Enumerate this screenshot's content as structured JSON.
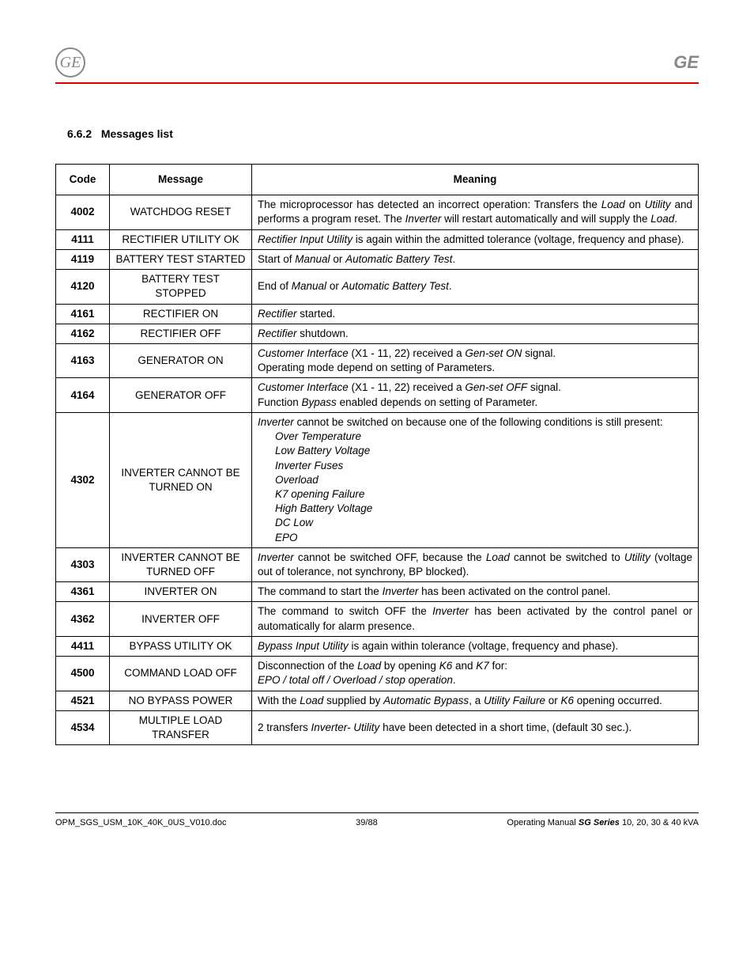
{
  "header": {
    "logo_text": "GE",
    "brand": "GE"
  },
  "section": {
    "number": "6.6.2",
    "title": "Messages list"
  },
  "table": {
    "headers": {
      "code": "Code",
      "message": "Message",
      "meaning": "Meaning"
    },
    "rows": [
      {
        "code": "4002",
        "msg": "WATCHDOG RESET",
        "mean_html": "The microprocessor has detected an incorrect operation: Transfers the <span class='ital'>Load</span> on <span class='ital'>Utility</span> and performs a program reset. The <span class='ital'>Inverter</span> will restart automatically and will supply the <span class='ital'>Load</span>."
      },
      {
        "code": "4111",
        "msg": "RECTIFIER UTILITY OK",
        "mean_html": "<span class='ital'>Rectifier Input Utility</span> is again within the admitted tolerance (voltage, frequency and phase)."
      },
      {
        "code": "4119",
        "msg": "BATTERY TEST STARTED",
        "mean_html": "Start of <span class='ital'>Manual</span> or <span class='ital'>Automatic Battery Test</span>."
      },
      {
        "code": "4120",
        "msg": "BATTERY TEST STOPPED",
        "mean_html": "End of <span class='ital'>Manual</span> or <span class='ital'>Automatic Battery Test</span>."
      },
      {
        "code": "4161",
        "msg": "RECTIFIER ON",
        "mean_html": "<span class='ital'>Rectifier</span> started."
      },
      {
        "code": "4162",
        "msg": "RECTIFIER OFF",
        "mean_html": "<span class='ital'>Rectifier</span> shutdown."
      },
      {
        "code": "4163",
        "msg": "GENERATOR ON",
        "mean_html": "<span class='ital'>Customer Interface</span> (X1 - 11, 22) received a <span class='ital'>Gen-set ON</span> signal.<br>Operating mode depend on setting of Parameters."
      },
      {
        "code": "4164",
        "msg": "GENERATOR OFF",
        "mean_html": "<span class='ital'>Customer Interface</span> (X1 - 11, 22) received a <span class='ital'>Gen-set OFF</span> signal.<br>Function <span class='ital'>Bypass</span> enabled depends on setting of Parameter."
      },
      {
        "code": "4302",
        "msg": "INVERTER CANNOT BE TURNED ON",
        "mean_html": "<span class='ital'>Inverter</span> cannot be switched on because one of the following conditions is still present:<br><div class='indent'>Over Temperature<br>Low Battery Voltage<br>Inverter Fuses<br>Overload<br>K7 opening Failure<br>High Battery Voltage<br>DC Low<br>EPO</div>"
      },
      {
        "code": "4303",
        "msg": "INVERTER CANNOT BE TURNED OFF",
        "mean_html": "<span class='ital'>Inverter</span> cannot be switched OFF, because the <span class='ital'>Load</span> cannot be switched to <span class='ital'>Utility</span> (voltage out of tolerance, not synchrony, BP blocked)."
      },
      {
        "code": "4361",
        "msg": "INVERTER ON",
        "mean_html": "The command to start the <span class='ital'>Inverter</span> has been activated on the control panel."
      },
      {
        "code": "4362",
        "msg": "INVERTER OFF",
        "mean_html": "The command to switch OFF the <span class='ital'>Inverter</span> has been activated by the control panel or automatically for alarm presence."
      },
      {
        "code": "4411",
        "msg": "BYPASS UTILITY OK",
        "mean_html": "<span class='ital'>Bypass Input Utility</span> is again within tolerance (voltage, frequency and phase)."
      },
      {
        "code": "4500",
        "msg": "COMMAND LOAD OFF",
        "mean_html": "Disconnection of the <span class='ital'>Load</span> by opening <span class='ital'>K6</span> and <span class='ital'>K7</span> for:<br><span class='ital'>EPO / total off / Overload / stop operation</span>."
      },
      {
        "code": "4521",
        "msg": "NO BYPASS POWER",
        "mean_html": "With the <span class='ital'>Load</span> supplied by <span class='ital'>Automatic Bypass</span>, a <span class='ital'>Utility Failure</span> or <span class='ital'>K6</span> opening occurred."
      },
      {
        "code": "4534",
        "msg": "MULTIPLE LOAD TRANSFER",
        "mean_html": "2 transfers <span class='ital'>Inverter- Utility</span> have been detected in a short time, (default 30 sec.)."
      }
    ]
  },
  "footer": {
    "left": "OPM_SGS_USM_10K_40K_0US_V010.doc",
    "mid": "39/88",
    "right_pre": "Operating Manual ",
    "right_bold": "SG Series",
    "right_post": " 10, 20, 30 & 40 kVA"
  }
}
